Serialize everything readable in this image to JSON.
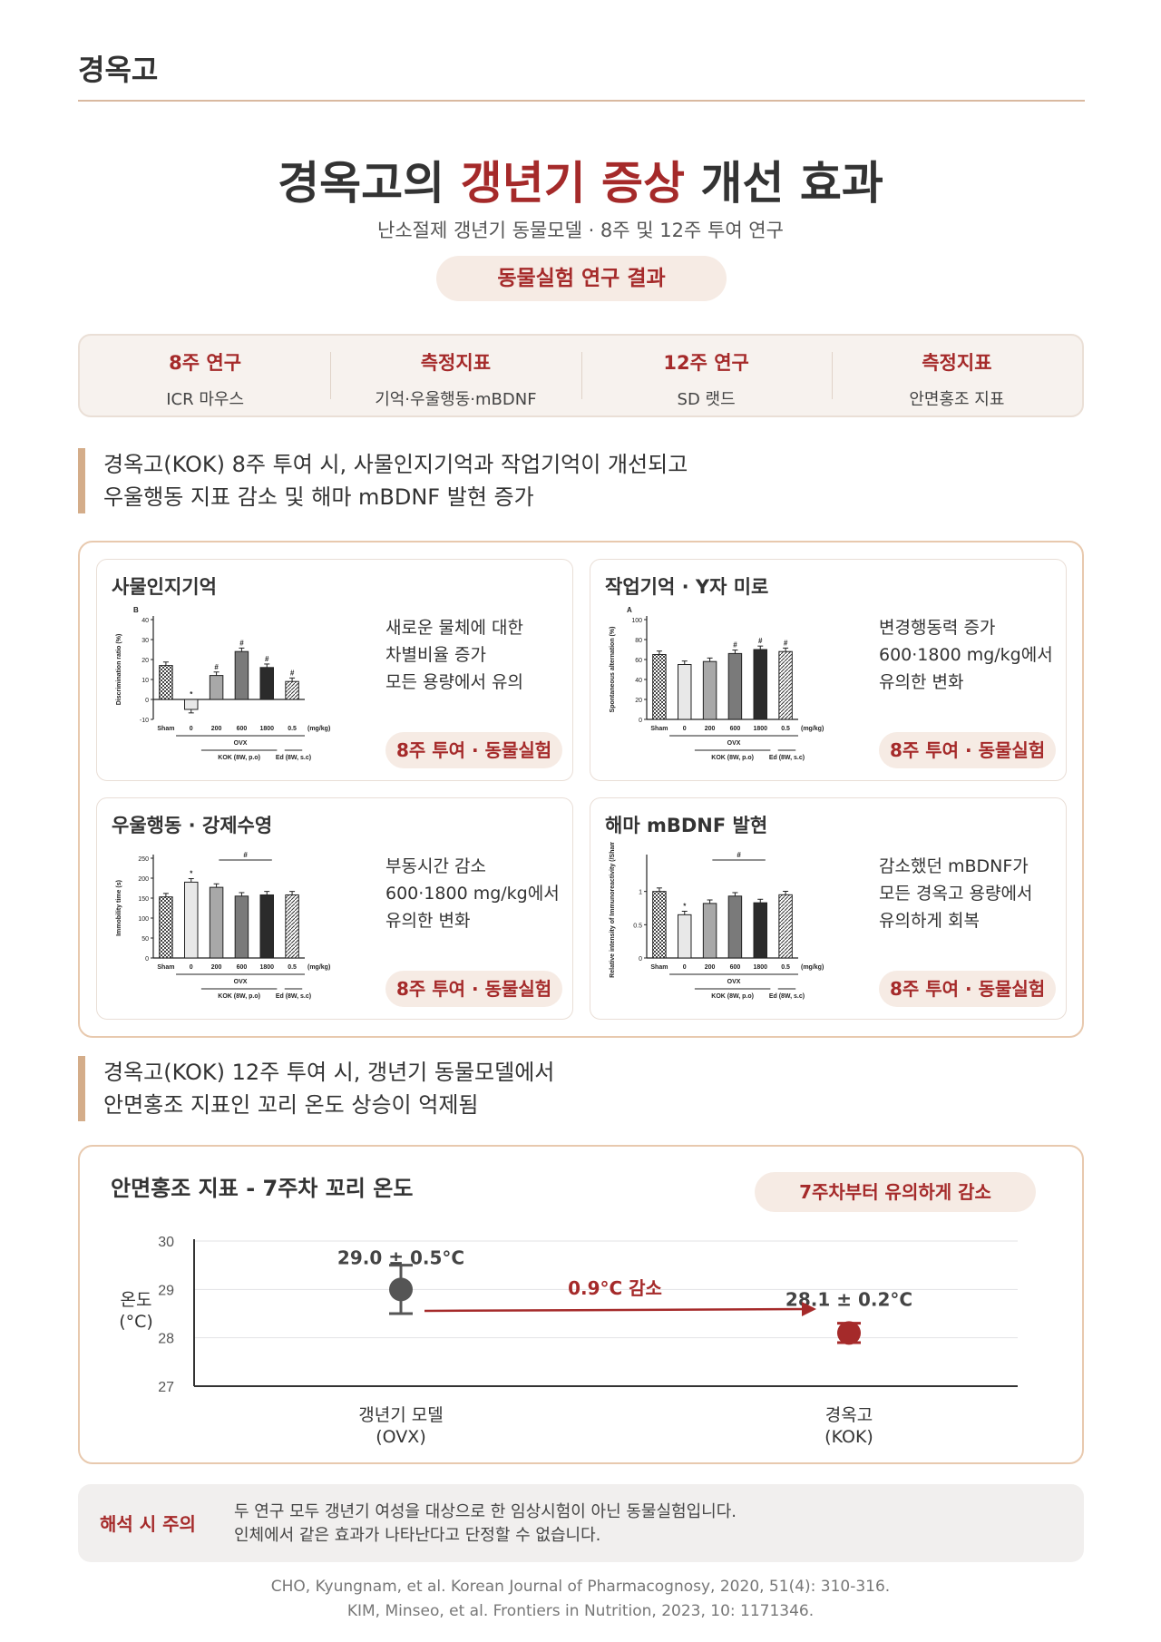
{
  "header": {
    "brand": "경옥고"
  },
  "hero": {
    "title_prefix": "경옥고의 ",
    "title_highlight": "갱년기 증상",
    "title_suffix": " 개선 효과",
    "subtitle": "난소절제 갱년기 동물모델 · 8주 및 12주 투여 연구",
    "pill": "동물실험 연구 결과"
  },
  "summary": [
    {
      "heading": "8주 연구",
      "value": "ICR 마우스"
    },
    {
      "heading": "측정지표",
      "value": "기억·우울행동·mBDNF"
    },
    {
      "heading": "12주 연구",
      "value": "SD 랫드"
    },
    {
      "heading": "측정지표",
      "value": "안면홍조 지표"
    }
  ],
  "section1": {
    "line1": "경옥고(KOK) 8주 투여 시, 사물인지기억과 작업기억이 개선되고",
    "line2": "우울행동 지표 감소 및 해마 mBDNF 발현 증가"
  },
  "cards": [
    {
      "title": "사물인지기억",
      "desc": "새로운 물체에 대한\n차별비율 증가\n모든 용량에서 유의",
      "tag": "8주 투여 · 동물실험"
    },
    {
      "title": "작업기억 · Y자 미로",
      "desc": "변경행동력 증가\n600·1800 mg/kg에서\n유의한 변화",
      "tag": "8주 투여 · 동물실험"
    },
    {
      "title": "우울행동 · 강제수영",
      "desc": "부동시간 감소\n600·1800 mg/kg에서\n유의한 변화",
      "tag": "8주 투여 · 동물실험"
    },
    {
      "title": "해마 mBDNF 발현",
      "desc": "감소했던 mBDNF가\n모든 경옥고 용량에서\n유의하게 회복",
      "tag": "8주 투여 · 동물실험"
    }
  ],
  "panel_labels": {
    "groups": [
      "Sham",
      "0",
      "200",
      "600",
      "1800",
      "0.5"
    ],
    "unit": "(mg/kg)",
    "ovx": "OVX",
    "kok": "KOK (8W, p.o)",
    "ed": "Ed (8W, s.c)"
  },
  "chart_data": [
    {
      "type": "bar",
      "panel": "B",
      "ylabel": "Discrimination ratio (%)",
      "categories": [
        "Sham",
        "0",
        "200",
        "600",
        "1800",
        "0.5"
      ],
      "values": [
        17,
        -5,
        12,
        24,
        16,
        9
      ],
      "ylim": [
        -10,
        40
      ],
      "yticks": [
        -10,
        0,
        10,
        20,
        30,
        40
      ],
      "marks": [
        "",
        "*",
        "#",
        "#",
        "#",
        "#"
      ]
    },
    {
      "type": "bar",
      "panel": "A",
      "ylabel": "Spontaneous alternation (%)",
      "categories": [
        "Sham",
        "0",
        "200",
        "600",
        "1800",
        "0.5"
      ],
      "values": [
        65,
        55,
        58,
        66,
        70,
        68
      ],
      "ylim": [
        0,
        100
      ],
      "yticks": [
        0,
        20,
        40,
        60,
        80,
        100
      ],
      "marks": [
        "",
        "",
        "",
        "#",
        "#",
        "#"
      ]
    },
    {
      "type": "bar",
      "ylabel": "Immobility time (s)",
      "categories": [
        "Sham",
        "0",
        "200",
        "600",
        "1800",
        "0.5"
      ],
      "values": [
        153,
        190,
        177,
        155,
        158,
        158
      ],
      "ylim": [
        0,
        250
      ],
      "yticks": [
        0,
        50,
        100,
        150,
        200,
        250
      ],
      "marks": [
        "",
        "*",
        "",
        "",
        "",
        ""
      ]
    },
    {
      "type": "bar",
      "ylabel": "Relative intensity of Immunoreactivity (/Sham)",
      "categories": [
        "Sham",
        "0",
        "200",
        "600",
        "1800",
        "0.5"
      ],
      "values": [
        1.0,
        0.65,
        0.82,
        0.93,
        0.83,
        0.95
      ],
      "ylim": [
        0,
        1.5
      ],
      "yticks": [
        0.0,
        0.5,
        1.0
      ],
      "marks": [
        "",
        "*",
        "",
        "",
        "",
        ""
      ]
    },
    {
      "type": "scatter",
      "title": "안면홍조 지표 - 7주차 꼬리 온도",
      "ylabel": "온도\n(°C)",
      "categories": [
        "갱년기 모델\n(OVX)",
        "경옥고\n(KOK)"
      ],
      "values": [
        29.0,
        28.1
      ],
      "errors": [
        0.5,
        0.2
      ],
      "labels": [
        "29.0 ± 0.5°C",
        "28.1 ± 0.2°C"
      ],
      "ylim": [
        27,
        30
      ],
      "yticks": [
        30,
        29,
        28,
        27
      ],
      "colors": [
        "#555555",
        "#a52a2a"
      ]
    }
  ],
  "section2": {
    "line1": "경옥고(KOK) 12주 투여 시, 갱년기 동물모델에서",
    "line2": "안면홍조 지표인 꼬리 온도 상승이 억제됨"
  },
  "temp": {
    "badge": "7주차부터 유의하게 감소",
    "arrow_label": "0.9°C 감소",
    "accent": "#a52a2a"
  },
  "note": {
    "label": "해석 시 주의",
    "text": "두 연구 모두 갱년기 여성을 대상으로 한 임상시험이 아닌 동물실험입니다.\n인체에서 같은 효과가 나타난다고 단정할 수 없습니다."
  },
  "references": [
    "CHO, Kyungnam, et al. Korean Journal of Pharmacognosy, 2020, 51(4): 310-316.",
    "KIM, Minseo, et al. Frontiers in Nutrition, 2023, 10: 1171346."
  ]
}
